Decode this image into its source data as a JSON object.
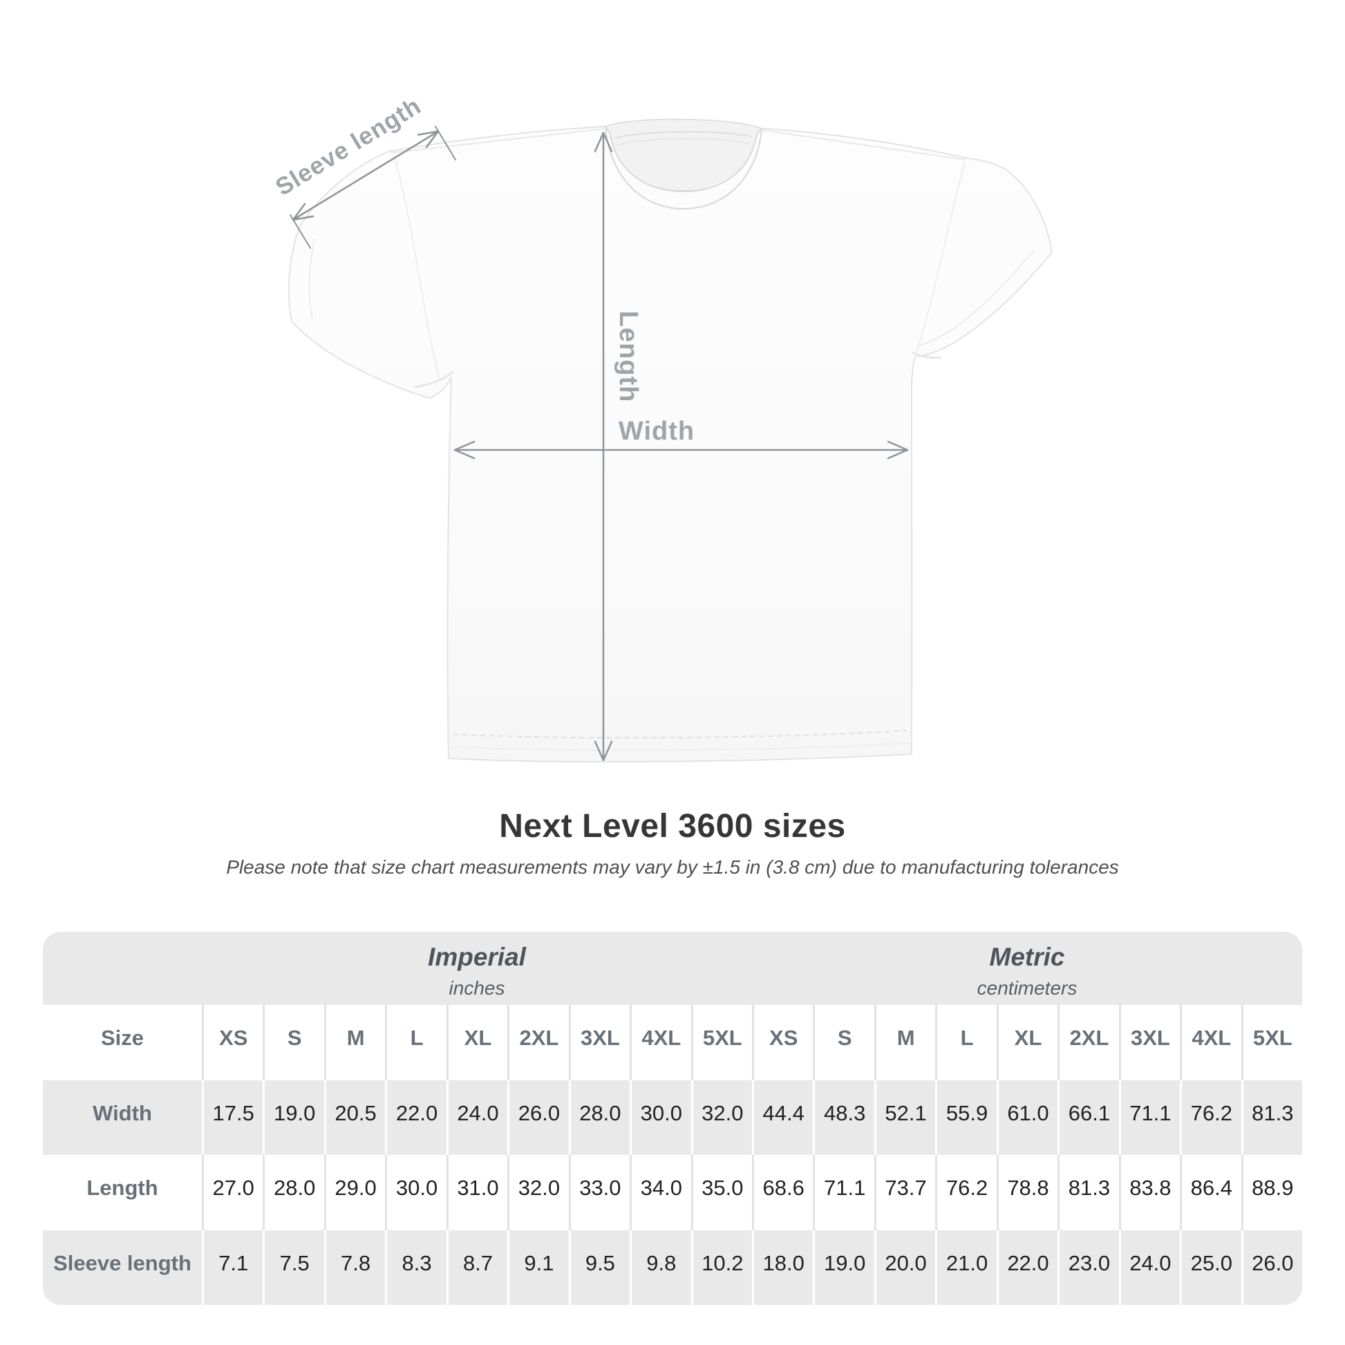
{
  "diagram": {
    "sleeve_length_label": "Sleeve length",
    "length_label": "Length",
    "width_label": "Width"
  },
  "heading": {
    "title": "Next Level 3600 sizes",
    "note": "Please note that size chart measurements may vary by ±1.5 in (3.8 cm) due to manufacturing tolerances"
  },
  "table": {
    "size_header_label": "Size",
    "unit_groups": [
      {
        "name": "Imperial",
        "unit": "inches"
      },
      {
        "name": "Metric",
        "unit": "centimeters"
      }
    ],
    "size_labels_imperial": [
      "XS",
      "S",
      "M",
      "L",
      "XL",
      "2XL",
      "3XL",
      "4XL",
      "5XL"
    ],
    "size_labels_metric": [
      "XS",
      "S",
      "M",
      "L",
      "XL",
      "2XL",
      "3XL",
      "4XL",
      "5XL"
    ],
    "rows": [
      {
        "label": "Width",
        "imperial": [
          "17.5",
          "19.0",
          "20.5",
          "22.0",
          "24.0",
          "26.0",
          "28.0",
          "30.0",
          "32.0"
        ],
        "metric": [
          "44.4",
          "48.3",
          "52.1",
          "55.9",
          "61.0",
          "66.1",
          "71.1",
          "76.2",
          "81.3"
        ]
      },
      {
        "label": "Length",
        "imperial": [
          "27.0",
          "28.0",
          "29.0",
          "30.0",
          "31.0",
          "32.0",
          "33.0",
          "34.0",
          "35.0"
        ],
        "metric": [
          "68.6",
          "71.1",
          "73.7",
          "76.2",
          "78.8",
          "81.3",
          "83.8",
          "86.4",
          "88.9"
        ]
      },
      {
        "label": "Sleeve length",
        "imperial": [
          "7.1",
          "7.5",
          "7.8",
          "8.3",
          "8.7",
          "9.1",
          "9.5",
          "9.8",
          "10.2"
        ],
        "metric": [
          "18.0",
          "19.0",
          "20.0",
          "21.0",
          "22.0",
          "23.0",
          "24.0",
          "25.0",
          "26.0"
        ]
      }
    ]
  },
  "colors": {
    "table_band": "#e9e9e9",
    "header_text": "#697077",
    "value_text": "#222222",
    "annotation_text": "#9fa4a9",
    "arrow": "#8f9499"
  }
}
